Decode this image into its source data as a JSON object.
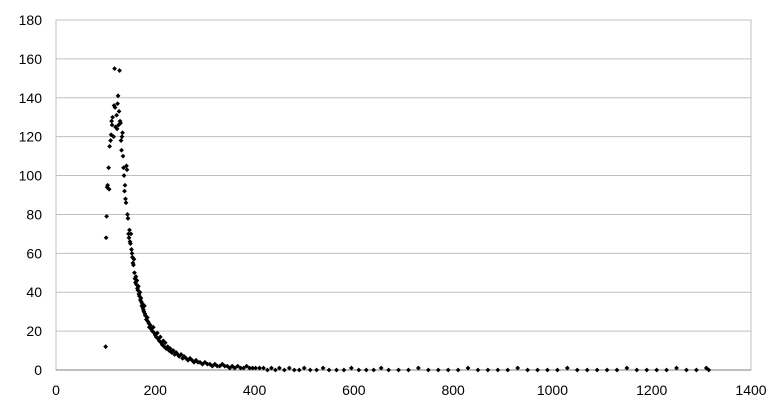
{
  "chart_data": {
    "type": "scatter",
    "xlim": [
      0,
      1400
    ],
    "ylim": [
      0,
      180
    ],
    "x_ticks": [
      "0",
      "200",
      "400",
      "600",
      "800",
      "1000",
      "1200",
      "1400"
    ],
    "y_ticks": [
      "0",
      "20",
      "40",
      "60",
      "80",
      "100",
      "120",
      "140",
      "160",
      "180"
    ],
    "grid": "horizontal",
    "marker": "diamond",
    "color": "#000000",
    "series": [
      {
        "points": [
          [
            100,
            12
          ],
          [
            101,
            68
          ],
          [
            102,
            79
          ],
          [
            103,
            94
          ],
          [
            104,
            95
          ],
          [
            106,
            104
          ],
          [
            107,
            93
          ],
          [
            108,
            115
          ],
          [
            110,
            118
          ],
          [
            111,
            121
          ],
          [
            112,
            128
          ],
          [
            113,
            126
          ],
          [
            114,
            130
          ],
          [
            116,
            120
          ],
          [
            117,
            136
          ],
          [
            118,
            155
          ],
          [
            119,
            135
          ],
          [
            120,
            125
          ],
          [
            122,
            131
          ],
          [
            123,
            124
          ],
          [
            124,
            137
          ],
          [
            125,
            141
          ],
          [
            126,
            126
          ],
          [
            127,
            133
          ],
          [
            128,
            154
          ],
          [
            129,
            128
          ],
          [
            130,
            127
          ],
          [
            131,
            118
          ],
          [
            132,
            113
          ],
          [
            133,
            120
          ],
          [
            134,
            122
          ],
          [
            135,
            110
          ],
          [
            136,
            104
          ],
          [
            137,
            100
          ],
          [
            138,
            92
          ],
          [
            139,
            95
          ],
          [
            140,
            88
          ],
          [
            141,
            86
          ],
          [
            142,
            105
          ],
          [
            143,
            103
          ],
          [
            144,
            80
          ],
          [
            145,
            78
          ],
          [
            146,
            70
          ],
          [
            147,
            68
          ],
          [
            148,
            72
          ],
          [
            149,
            66
          ],
          [
            150,
            65
          ],
          [
            151,
            70
          ],
          [
            152,
            62
          ],
          [
            153,
            60
          ],
          [
            154,
            58
          ],
          [
            155,
            55
          ],
          [
            156,
            54
          ],
          [
            157,
            57
          ],
          [
            158,
            50
          ],
          [
            159,
            47
          ],
          [
            160,
            45
          ],
          [
            161,
            48
          ],
          [
            162,
            44
          ],
          [
            163,
            46
          ],
          [
            164,
            42
          ],
          [
            165,
            41
          ],
          [
            166,
            43
          ],
          [
            167,
            39
          ],
          [
            168,
            38
          ],
          [
            169,
            40
          ],
          [
            170,
            36
          ],
          [
            171,
            37
          ],
          [
            172,
            35
          ],
          [
            173,
            33
          ],
          [
            174,
            34
          ],
          [
            175,
            32
          ],
          [
            176,
            31
          ],
          [
            177,
            30
          ],
          [
            178,
            33
          ],
          [
            179,
            29
          ],
          [
            180,
            28
          ],
          [
            182,
            26
          ],
          [
            184,
            27
          ],
          [
            185,
            25
          ],
          [
            187,
            24
          ],
          [
            188,
            22
          ],
          [
            190,
            23
          ],
          [
            192,
            21
          ],
          [
            194,
            20
          ],
          [
            196,
            22
          ],
          [
            198,
            19
          ],
          [
            200,
            18
          ],
          [
            202,
            17
          ],
          [
            204,
            19
          ],
          [
            206,
            16
          ],
          [
            208,
            15
          ],
          [
            210,
            17
          ],
          [
            212,
            14
          ],
          [
            214,
            13
          ],
          [
            216,
            15
          ],
          [
            218,
            12
          ],
          [
            220,
            14
          ],
          [
            222,
            11
          ],
          [
            225,
            12
          ],
          [
            228,
            10
          ],
          [
            230,
            11
          ],
          [
            233,
            9
          ],
          [
            236,
            10
          ],
          [
            239,
            8
          ],
          [
            242,
            9
          ],
          [
            245,
            8
          ],
          [
            248,
            7
          ],
          [
            252,
            8
          ],
          [
            255,
            6
          ],
          [
            258,
            7
          ],
          [
            262,
            6
          ],
          [
            266,
            5
          ],
          [
            270,
            6
          ],
          [
            274,
            5
          ],
          [
            278,
            4
          ],
          [
            282,
            5
          ],
          [
            286,
            4
          ],
          [
            290,
            4
          ],
          [
            295,
            3
          ],
          [
            300,
            4
          ],
          [
            305,
            3
          ],
          [
            310,
            3
          ],
          [
            315,
            2
          ],
          [
            320,
            3
          ],
          [
            325,
            2
          ],
          [
            330,
            2
          ],
          [
            335,
            3
          ],
          [
            340,
            2
          ],
          [
            345,
            2
          ],
          [
            350,
            1
          ],
          [
            355,
            2
          ],
          [
            360,
            1
          ],
          [
            366,
            2
          ],
          [
            372,
            1
          ],
          [
            378,
            1
          ],
          [
            384,
            2
          ],
          [
            390,
            1
          ],
          [
            396,
            1
          ],
          [
            402,
            1
          ],
          [
            410,
            1
          ],
          [
            418,
            1
          ],
          [
            426,
            0
          ],
          [
            434,
            1
          ],
          [
            442,
            0
          ],
          [
            450,
            1
          ],
          [
            460,
            0
          ],
          [
            470,
            1
          ],
          [
            480,
            0
          ],
          [
            490,
            0
          ],
          [
            500,
            1
          ],
          [
            512,
            0
          ],
          [
            525,
            0
          ],
          [
            538,
            1
          ],
          [
            550,
            0
          ],
          [
            565,
            0
          ],
          [
            580,
            0
          ],
          [
            595,
            1
          ],
          [
            610,
            0
          ],
          [
            625,
            0
          ],
          [
            640,
            0
          ],
          [
            655,
            1
          ],
          [
            670,
            0
          ],
          [
            690,
            0
          ],
          [
            710,
            0
          ],
          [
            730,
            1
          ],
          [
            750,
            0
          ],
          [
            770,
            0
          ],
          [
            790,
            0
          ],
          [
            810,
            0
          ],
          [
            830,
            1
          ],
          [
            850,
            0
          ],
          [
            870,
            0
          ],
          [
            890,
            0
          ],
          [
            910,
            0
          ],
          [
            930,
            1
          ],
          [
            950,
            0
          ],
          [
            970,
            0
          ],
          [
            990,
            0
          ],
          [
            1010,
            0
          ],
          [
            1030,
            1
          ],
          [
            1050,
            0
          ],
          [
            1070,
            0
          ],
          [
            1090,
            0
          ],
          [
            1110,
            0
          ],
          [
            1130,
            0
          ],
          [
            1150,
            1
          ],
          [
            1170,
            0
          ],
          [
            1190,
            0
          ],
          [
            1210,
            0
          ],
          [
            1230,
            0
          ],
          [
            1250,
            1
          ],
          [
            1270,
            0
          ],
          [
            1290,
            0
          ],
          [
            1310,
            1
          ],
          [
            1315,
            0
          ]
        ]
      }
    ]
  }
}
